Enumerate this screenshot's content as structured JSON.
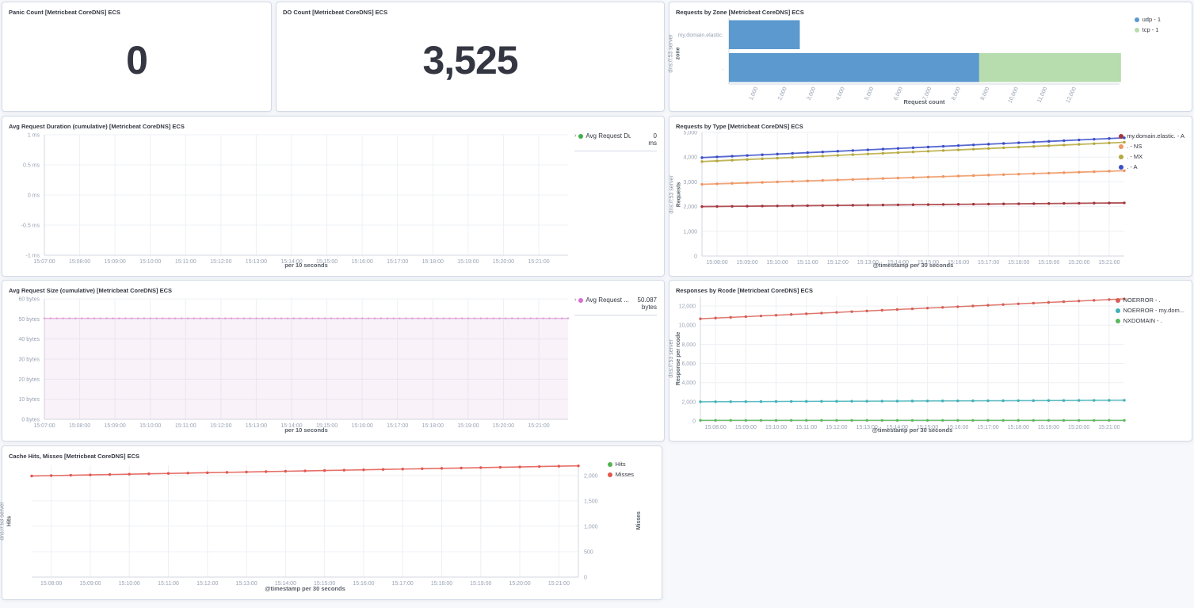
{
  "panels": {
    "panic_count": {
      "title": "Panic Count [Metricbeat CoreDNS] ECS",
      "value": "0"
    },
    "do_count": {
      "title": "DO Count [Metricbeat CoreDNS] ECS",
      "value": "3,525"
    },
    "requests_by_zone": {
      "title": "Requests by Zone [Metricbeat CoreDNS] ECS"
    },
    "avg_request_duration": {
      "title": "Avg Request Duration (cumulative) [Metricbeat CoreDNS] ECS"
    },
    "requests_by_type": {
      "title": "Requests by Type [Metricbeat CoreDNS] ECS"
    },
    "avg_request_size": {
      "title": "Avg Request Size (cumulative) [Metricbeat CoreDNS] ECS"
    },
    "responses_by_rcode": {
      "title": "Responses by Rcode [Metricbeat CoreDNS] ECS"
    },
    "cache_hits_misses": {
      "title": "Cache Hits, Misses [Metricbeat CoreDNS] ECS"
    }
  },
  "chart_data": [
    {
      "panel": "Requests by Zone [Metricbeat CoreDNS] ECS",
      "type": "bar",
      "orientation": "horizontal",
      "stacked": true,
      "categories": [
        "my.domain.elastic.",
        "."
      ],
      "series": [
        {
          "name": "udp",
          "legend": "udp - 1",
          "color": "#5b99cf",
          "values": [
            2450,
            8650
          ]
        },
        {
          "name": "tcp",
          "legend": "tcp - 1",
          "color": "#b7dcae",
          "values": [
            0,
            4900
          ]
        }
      ],
      "xlabel": "Request count",
      "ylabel_line1": "dns://:53 server",
      "ylabel_line2": "zone",
      "xlim": [
        0,
        13500
      ],
      "xticks": [
        1000,
        2000,
        3000,
        4000,
        5000,
        6000,
        7000,
        8000,
        9000,
        10000,
        11000,
        12000
      ],
      "xtick_labels": [
        "1,000",
        "2,000",
        "3,000",
        "4,000",
        "5,000",
        "6,000",
        "7,000",
        "8,000",
        "9,000",
        "10,000",
        "11,000",
        "12,000"
      ],
      "legend": {
        "style": "dots",
        "position": "top-right",
        "items": [
          {
            "label": "udp - 1",
            "color": "#5b99cf"
          },
          {
            "label": "tcp - 1",
            "color": "#b7dcae"
          }
        ]
      },
      "layout": {
        "ml": 66,
        "mr": 82,
        "mt": 3,
        "mb": 27,
        "bar_fill": 0.88,
        "tick_rotate": -65,
        "legend_top": 0,
        "legend_right": 30
      }
    },
    {
      "panel": "Avg Request Duration (cumulative) [Metricbeat CoreDNS] ECS",
      "type": "line",
      "x": {
        "min": 0,
        "max": 14.83,
        "label": "per 10 seconds",
        "ticks": [
          0,
          1,
          2,
          3,
          4,
          5,
          6,
          7,
          8,
          9,
          10,
          11,
          12,
          13,
          14
        ],
        "tick_labels": [
          "15:07:00",
          "15:08:00",
          "15:09:00",
          "15:10:00",
          "15:11:00",
          "15:12:00",
          "15:13:00",
          "15:14:00",
          "15:15:00",
          "15:16:00",
          "15:17:00",
          "15:18:00",
          "15:19:00",
          "15:20:00",
          "15:21:00"
        ]
      },
      "y": {
        "min": -1,
        "max": 1,
        "side": "left",
        "ticks": [
          1,
          0.5,
          0,
          -0.5,
          -1
        ],
        "tick_labels": [
          "1 ms",
          "0.5 ms",
          "0 ms",
          "-0.5 ms",
          "-1 ms"
        ]
      },
      "series": [],
      "legend": {
        "style": "table",
        "items": [
          {
            "label": "Avg Request Dura...",
            "value": "0",
            "unit": "ms",
            "color": "#3fae49"
          }
        ]
      },
      "layout": {
        "ml": 44,
        "mr": 112,
        "mt": 5,
        "mb": 17,
        "legend_top": 2,
        "legend_right": 0
      }
    },
    {
      "panel": "Requests by Type [Metricbeat CoreDNS] ECS",
      "type": "line",
      "n_points": 29,
      "x": {
        "min": 0.5,
        "max": 14.5,
        "label": "@timestamp per 30 seconds",
        "ticks": [
          1,
          2,
          3,
          4,
          5,
          6,
          7,
          8,
          9,
          10,
          11,
          12,
          13,
          14
        ],
        "tick_labels": [
          "15:08:00",
          "15:09:00",
          "15:10:00",
          "15:11:00",
          "15:12:00",
          "15:13:00",
          "15:14:00",
          "15:15:00",
          "15:16:00",
          "15:17:00",
          "15:18:00",
          "15:19:00",
          "15:20:00",
          "15:21:00"
        ]
      },
      "y": {
        "min": 0,
        "max": 5000,
        "side": "left",
        "ticks": [
          0,
          1000,
          2000,
          3000,
          4000,
          5000
        ],
        "tick_labels": [
          "0",
          "1,000",
          "2,000",
          "3,000",
          "4,000",
          "5,000"
        ]
      },
      "ylabel_line1": "dns://:53 server",
      "ylabel_line2": "Requests",
      "series": [
        {
          "label": "my.domain.elastic. - A",
          "color": "#a3353c",
          "start": 2000,
          "end": 2150,
          "width": 1.8
        },
        {
          "label": ". - NS",
          "color": "#ef9560",
          "start": 2900,
          "end": 3450,
          "width": 1.8
        },
        {
          "label": ". - MX",
          "color": "#b5a83c",
          "start": 3820,
          "end": 4600,
          "width": 1.8
        },
        {
          "label": ". - A",
          "color": "#3a4ec8",
          "start": 3980,
          "end": 4780,
          "width": 1.8
        }
      ],
      "legend": {
        "style": "dots",
        "position": "top-right",
        "items": [
          {
            "label": "my.domain.elastic. - A",
            "color": "#a3353c"
          },
          {
            "label": ". - NS",
            "color": "#ef9560"
          },
          {
            "label": ". - MX",
            "color": "#b5a83c"
          },
          {
            "label": ". - A",
            "color": "#3a4ec8"
          }
        ]
      },
      "layout": {
        "ml": 32,
        "mr": 76,
        "mt": 2,
        "mb": 16,
        "legend_top": 2,
        "legend_right": 0
      }
    },
    {
      "panel": "Avg Request Size (cumulative) [Metricbeat CoreDNS] ECS",
      "type": "area",
      "x": {
        "min": 0,
        "max": 14.83,
        "label": "per 10 seconds",
        "ticks": [
          0,
          1,
          2,
          3,
          4,
          5,
          6,
          7,
          8,
          9,
          10,
          11,
          12,
          13,
          14
        ],
        "tick_labels": [
          "15:07:00",
          "15:08:00",
          "15:09:00",
          "15:10:00",
          "15:11:00",
          "15:12:00",
          "15:13:00",
          "15:14:00",
          "15:15:00",
          "15:16:00",
          "15:17:00",
          "15:18:00",
          "15:19:00",
          "15:20:00",
          "15:21:00"
        ]
      },
      "y": {
        "min": 0,
        "max": 60,
        "side": "left",
        "ticks": [
          0,
          10,
          20,
          30,
          40,
          50,
          60
        ],
        "tick_labels": [
          "0 bytes",
          "10 bytes",
          "20 bytes",
          "30 bytes",
          "40 bytes",
          "50 bytes",
          "60 bytes"
        ]
      },
      "series": [
        {
          "label": "Avg Request ...",
          "color": "#d96fd0",
          "line_color": "#e3a8da",
          "marker_color": "#dc96d3",
          "fill": "rgba(222,160,214,0.14)",
          "area": true,
          "start": 50.3,
          "end": 50.3,
          "n_points": 85,
          "width": 1.4,
          "marker_r": 1.1
        }
      ],
      "legend": {
        "style": "table",
        "items": [
          {
            "label": "Avg Request ...",
            "value": "50.087",
            "unit": "bytes",
            "color": "#d96fd0"
          }
        ]
      },
      "layout": {
        "ml": 44,
        "mr": 112,
        "mt": 5,
        "mb": 18,
        "legend_top": 2,
        "legend_right": 0
      }
    },
    {
      "panel": "Responses by Rcode [Metricbeat CoreDNS] ECS",
      "type": "line",
      "n_points": 29,
      "x": {
        "min": 0.5,
        "max": 14.5,
        "label": "@timestamp per 30 seconds",
        "ticks": [
          1,
          2,
          3,
          4,
          5,
          6,
          7,
          8,
          9,
          10,
          11,
          12,
          13,
          14
        ],
        "tick_labels": [
          "15:08:00",
          "15:09:00",
          "15:10:00",
          "15:11:00",
          "15:12:00",
          "15:13:00",
          "15:14:00",
          "15:15:00",
          "15:16:00",
          "15:17:00",
          "15:18:00",
          "15:19:00",
          "15:20:00",
          "15:21:00"
        ]
      },
      "y": {
        "min": 0,
        "max": 13000,
        "side": "left",
        "ticks": [
          0,
          2000,
          4000,
          6000,
          8000,
          10000,
          12000
        ],
        "tick_labels": [
          "0",
          "2,000",
          "4,000",
          "6,000",
          "8,000",
          "10,000",
          "12,000"
        ]
      },
      "ylabel_line1": "dns://:53 server",
      "ylabel_line2": "Response per rcode",
      "series": [
        {
          "label": "NOERROR - .",
          "color": "#d75f55",
          "start": 10670,
          "end": 12750,
          "width": 1.5
        },
        {
          "label": "NOERROR - my.dom...",
          "color": "#3fb1b7",
          "start": 2000,
          "end": 2160,
          "width": 1.5
        },
        {
          "label": "NXDOMAIN - .",
          "color": "#5cb85c",
          "start": 60,
          "end": 60,
          "width": 1.5
        }
      ],
      "legend": {
        "style": "dots",
        "position": "top-right",
        "items": [
          {
            "label": "NOERROR - .",
            "color": "#d75f55"
          },
          {
            "label": "NOERROR - my.dom...",
            "color": "#3fb1b7"
          },
          {
            "label": "NXDOMAIN - .",
            "color": "#5cb85c"
          }
        ]
      },
      "layout": {
        "ml": 30,
        "mr": 76,
        "mt": 2,
        "mb": 16,
        "legend_top": 2,
        "legend_right": 0
      }
    },
    {
      "panel": "Cache Hits, Misses [Metricbeat CoreDNS] ECS",
      "type": "line",
      "n_points": 29,
      "x": {
        "min": 0.5,
        "max": 14.5,
        "label": "@timestamp per 30 seconds",
        "ticks": [
          1,
          2,
          3,
          4,
          5,
          6,
          7,
          8,
          9,
          10,
          11,
          12,
          13,
          14
        ],
        "tick_labels": [
          "15:08:00",
          "15:09:00",
          "15:10:00",
          "15:11:00",
          "15:12:00",
          "15:13:00",
          "15:14:00",
          "15:15:00",
          "15:16:00",
          "15:17:00",
          "15:18:00",
          "15:19:00",
          "15:20:00",
          "15:21:00"
        ]
      },
      "y": {
        "min": 0,
        "max": 2200,
        "side": "right",
        "ticks": [
          0,
          500,
          1000,
          1500,
          2000
        ],
        "tick_labels": [
          "0",
          "500",
          "1,000",
          "1,500",
          "2,000"
        ]
      },
      "ylabel_line1": "dns://:53 server",
      "ylabel_line2": "Hits",
      "ylabel_right": "Misses",
      "series": [
        {
          "label": "Misses",
          "color": "#e2564d",
          "start": 1990,
          "end": 2190,
          "width": 1.6
        }
      ],
      "legend": {
        "style": "dots",
        "position": "top-right",
        "items": [
          {
            "label": "Hits",
            "color": "#53b253"
          },
          {
            "label": "Misses",
            "color": "#e2564d"
          }
        ]
      },
      "layout": {
        "ml": 28,
        "mr": 96,
        "mt": 6,
        "mb": 19,
        "legend_top": 0,
        "legend_right": 26
      }
    }
  ]
}
